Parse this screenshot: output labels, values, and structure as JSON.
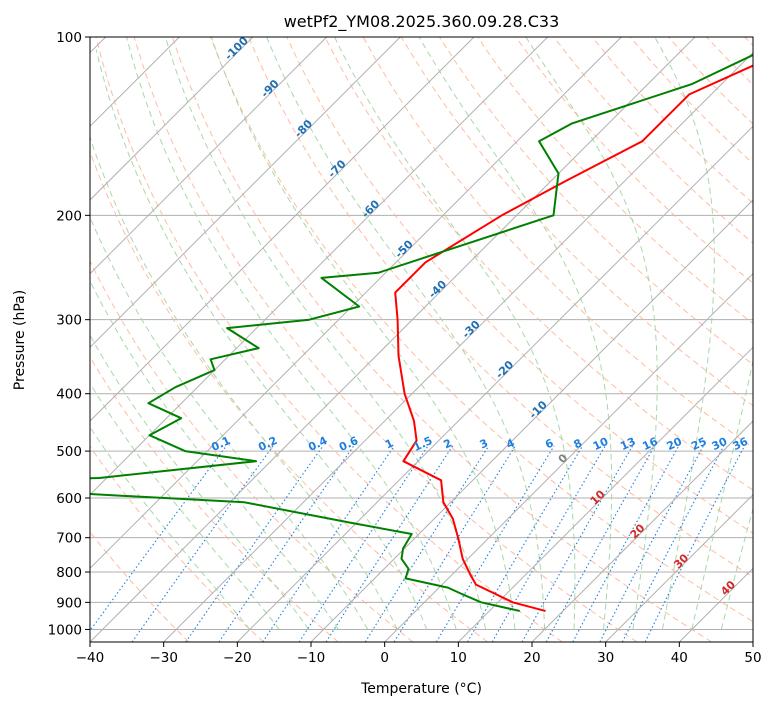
{
  "chart_data": {
    "type": "line",
    "title": "wetPf2_YM08.2025.360.09.28.C33",
    "xlabel": "Temperature (°C)",
    "ylabel": "Pressure (hPa)",
    "xlim": [
      -40,
      50
    ],
    "ylim": [
      1050,
      100
    ],
    "y_scale": "log",
    "grid": true,
    "x_ticks": [
      -40,
      -30,
      -20,
      -10,
      0,
      10,
      20,
      30,
      40,
      50
    ],
    "x_tick_labels": [
      "−40",
      "−30",
      "−20",
      "−10",
      "0",
      "10",
      "20",
      "30",
      "40",
      "50"
    ],
    "y_ticks": [
      1000,
      900,
      800,
      700,
      600,
      500,
      400,
      300,
      200,
      100
    ],
    "y_tick_labels": [
      "1000",
      "900",
      "800",
      "700",
      "600",
      "500",
      "400",
      "300",
      "200",
      "100"
    ],
    "isotherm_skew_labels": [
      {
        "value": -100,
        "text": "-100"
      },
      {
        "value": -90,
        "text": "-90"
      },
      {
        "value": -80,
        "text": "-80"
      },
      {
        "value": -70,
        "text": "-70"
      },
      {
        "value": -60,
        "text": "-60"
      },
      {
        "value": -50,
        "text": "-50"
      },
      {
        "value": -40,
        "text": "-40"
      },
      {
        "value": -30,
        "text": "-30"
      },
      {
        "value": -20,
        "text": "-20"
      },
      {
        "value": -10,
        "text": "-10"
      },
      {
        "value": 0,
        "text": "0"
      },
      {
        "value": 10,
        "text": "10"
      },
      {
        "value": 20,
        "text": "20"
      },
      {
        "value": 30,
        "text": "30"
      },
      {
        "value": 40,
        "text": "40"
      }
    ],
    "mixing_ratio_labels": [
      "0.1",
      "0.2",
      "0.4",
      "0.6",
      "1",
      "1.5",
      "2",
      "3",
      "4",
      "6",
      "8",
      "10",
      "13",
      "16",
      "20",
      "25",
      "30",
      "36"
    ],
    "mixing_ratio_values": [
      0.1,
      0.2,
      0.4,
      0.6,
      1,
      1.5,
      2,
      3,
      4,
      6,
      8,
      10,
      13,
      16,
      20,
      25,
      30,
      36
    ],
    "colors": {
      "temperature": "#ff0000",
      "dewpoint": "#008000",
      "grid": "#b0b0b0",
      "isotherm": "#808080",
      "dry_adiabat": "#ffb090",
      "moist_adiabat": "#9fd49f",
      "mixing_ratio": "#1f7fe0",
      "cold_iso_label": "#1f6fb4",
      "warm_iso_label": "#d62728",
      "zero_iso_label": "#808080"
    },
    "series": [
      {
        "name": "Temperature",
        "points": [
          [
            -23.5,
            100
          ],
          [
            -33,
            125
          ],
          [
            -33,
            150
          ],
          [
            -38,
            175
          ],
          [
            -42,
            200
          ],
          [
            -46,
            240
          ],
          [
            -46,
            270
          ],
          [
            -42,
            300
          ],
          [
            -37,
            345
          ],
          [
            -31,
            400
          ],
          [
            -26,
            445
          ],
          [
            -23,
            480
          ],
          [
            -22,
            520
          ],
          [
            -14.3,
            560
          ],
          [
            -11,
            610
          ],
          [
            -7.5,
            650
          ],
          [
            -4.2,
            700
          ],
          [
            -0.7,
            760
          ],
          [
            2.6,
            810
          ],
          [
            4.6,
            840
          ],
          [
            12,
            900
          ],
          [
            17.5,
            930
          ]
        ]
      },
      {
        "name": "Dewpoint",
        "points": [
          [
            -27,
            100
          ],
          [
            -34,
            120
          ],
          [
            -45,
            140
          ],
          [
            -47,
            150
          ],
          [
            -40,
            170
          ],
          [
            -35,
            200
          ],
          [
            -51,
            250
          ],
          [
            -58,
            255
          ],
          [
            -49,
            285
          ],
          [
            -54,
            300
          ],
          [
            -64,
            310
          ],
          [
            -57,
            335
          ],
          [
            -62,
            350
          ],
          [
            -60,
            365
          ],
          [
            -63,
            390
          ],
          [
            -64.5,
            415
          ],
          [
            -58,
            440
          ],
          [
            -60,
            470
          ],
          [
            -53,
            500
          ],
          [
            -42,
            520
          ],
          [
            -61,
            555
          ],
          [
            -96,
            568
          ],
          [
            -61,
            590
          ],
          [
            -38,
            610
          ],
          [
            -21,
            660
          ],
          [
            -11,
            690
          ],
          [
            -10.2,
            730
          ],
          [
            -9,
            760
          ],
          [
            -6.7,
            790
          ],
          [
            -5.8,
            820
          ],
          [
            1.2,
            850
          ],
          [
            3.8,
            870
          ],
          [
            7.7,
            900
          ],
          [
            14,
            930
          ]
        ]
      }
    ]
  }
}
